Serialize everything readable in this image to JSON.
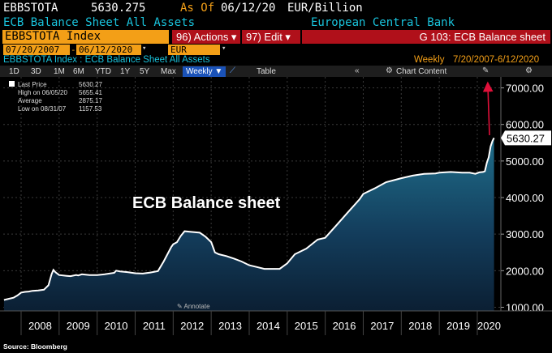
{
  "header": {
    "ticker": "EBBSTOTA",
    "last_value": "5630.275",
    "as_of_label": "As Of",
    "as_of_date": "06/12/20",
    "unit": "EUR/Billion",
    "description": "ECB Balance Sheet All Assets",
    "source_name": "European Central Bank"
  },
  "toolbar": {
    "index_field": "EBBSTOTA Index",
    "actions_label": "96) Actions ▾",
    "edit_label": "97) Edit ▾",
    "graph_label": "G 103: ECB Balance sheet",
    "start_date": "07/20/2007",
    "end_date": "06/12/2020",
    "currency": "EUR",
    "subtitle": "EBBSTOTA Index : ECB Balance Sheet All Assets",
    "frequency_label": "Weekly",
    "date_range": "7/20/2007-6/12/2020",
    "periods": [
      "1D",
      "3D",
      "1M",
      "6M",
      "YTD",
      "1Y",
      "5Y",
      "Max"
    ],
    "weekly_button": "Weekly ▼",
    "table_label": "Table",
    "chart_content_label": "Chart Content"
  },
  "legend": [
    {
      "label": "Last Price",
      "value": "5630.27"
    },
    {
      "label": "High on 06/05/20",
      "value": "5655.41"
    },
    {
      "label": "Average",
      "value": "2875.17"
    },
    {
      "label": "Low on 08/31/07",
      "value": "1157.53"
    }
  ],
  "annotation": "ECB Balance sheet",
  "annotate_label": "Annotate",
  "source": "Source: Bloomberg",
  "colors": {
    "accent": "#f39f17",
    "cyan": "#19c3dc",
    "red": "#b0101a",
    "arrow": "#e0103a"
  },
  "chart_data": {
    "type": "area",
    "title": "",
    "xlabel": "",
    "ylabel": "",
    "ylim": [
      900,
      7300
    ],
    "xlim": [
      2007.53,
      2020.62
    ],
    "y_ticks": [
      1000,
      2000,
      3000,
      4000,
      5000,
      6000,
      7000
    ],
    "y_tick_labels": [
      "1000.00",
      "2000.00",
      "3000.00",
      "4000.00",
      "5000.00",
      "6000.00",
      "7000.00"
    ],
    "x_tick_labels": [
      "2008",
      "2009",
      "2010",
      "2011",
      "2012",
      "2013",
      "2014",
      "2015",
      "2016",
      "2017",
      "2018",
      "2019",
      "2020"
    ],
    "last_label": "5630.27",
    "series": [
      {
        "x": [
          2007.55,
          2007.67,
          2007.8,
          2007.9,
          2008.0,
          2008.1,
          2008.2,
          2008.3,
          2008.45,
          2008.6,
          2008.72,
          2008.8,
          2008.85,
          2008.9,
          2009.0,
          2009.2,
          2009.3,
          2009.45,
          2009.5,
          2009.6,
          2009.8,
          2010.0,
          2010.2,
          2010.45,
          2010.5,
          2010.6,
          2010.8,
          2011.0,
          2011.2,
          2011.4,
          2011.6,
          2011.75,
          2011.85,
          2011.95,
          2012.0,
          2012.1,
          2012.2,
          2012.3,
          2012.5,
          2012.7,
          2012.85,
          2013.0,
          2013.1,
          2013.2,
          2013.4,
          2013.6,
          2013.8,
          2014.0,
          2014.2,
          2014.4,
          2014.6,
          2014.8,
          2015.0,
          2015.2,
          2015.5,
          2015.8,
          2016.0,
          2016.3,
          2016.6,
          2016.9,
          2017.0,
          2017.3,
          2017.6,
          2017.9,
          2018.0,
          2018.3,
          2018.6,
          2018.9,
          2019.0,
          2019.3,
          2019.6,
          2019.8,
          2019.95,
          2020.05,
          2020.15,
          2020.2,
          2020.25,
          2020.3,
          2020.35,
          2020.4,
          2020.44
        ],
        "y": [
          1200,
          1230,
          1260,
          1320,
          1400,
          1420,
          1430,
          1450,
          1460,
          1480,
          1600,
          1900,
          2020,
          1960,
          1880,
          1860,
          1850,
          1880,
          1870,
          1900,
          1880,
          1880,
          1900,
          1940,
          2000,
          1980,
          1960,
          1930,
          1920,
          1950,
          1990,
          2250,
          2450,
          2650,
          2720,
          2780,
          2950,
          3080,
          3060,
          3040,
          2930,
          2780,
          2500,
          2450,
          2400,
          2330,
          2250,
          2150,
          2100,
          2050,
          2050,
          2050,
          2200,
          2450,
          2600,
          2850,
          2900,
          3250,
          3600,
          3950,
          4100,
          4250,
          4420,
          4500,
          4530,
          4600,
          4650,
          4660,
          4680,
          4700,
          4680,
          4680,
          4650,
          4690,
          4700,
          4720,
          4950,
          5100,
          5400,
          5550,
          5630
        ]
      }
    ]
  }
}
